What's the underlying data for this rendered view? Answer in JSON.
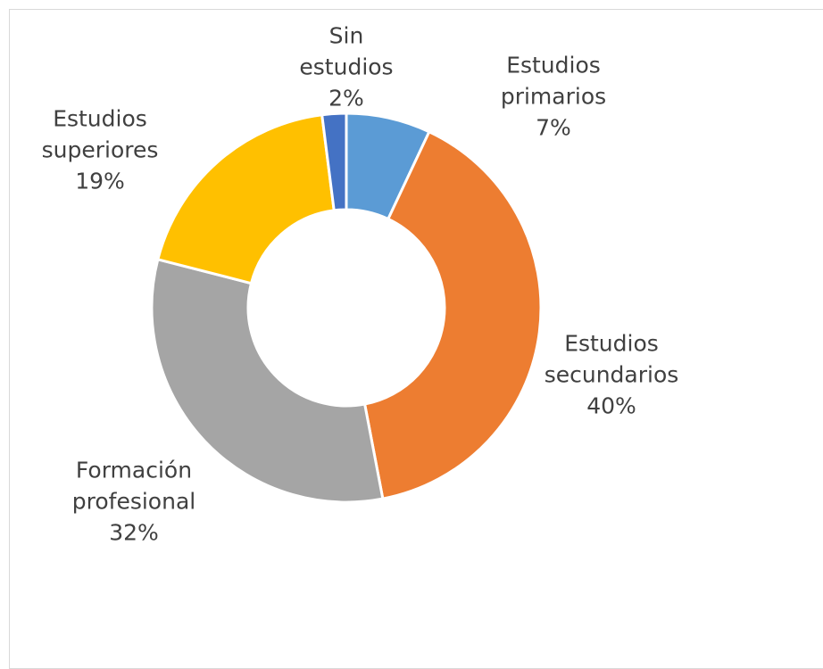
{
  "chart_data": {
    "type": "donut",
    "categories": [
      "Estudios primarios",
      "Estudios secundarios",
      "Formación profesional",
      "Estudios superiores",
      "Sin estudios"
    ],
    "values": [
      7,
      40,
      32,
      19,
      2
    ],
    "value_labels": [
      "7%",
      "40%",
      "32%",
      "19%",
      "2%"
    ],
    "colors": [
      "#5b9bd5",
      "#ed7d31",
      "#a5a5a5",
      "#ffc000",
      "#4472c4"
    ]
  }
}
